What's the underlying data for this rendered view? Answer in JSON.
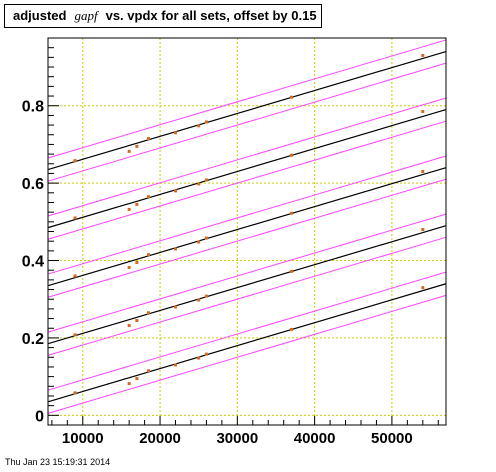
{
  "title": {
    "prefix": "adjusted",
    "math": "gapf",
    "suffix": "vs. vpdx for all sets, offset by 0.15"
  },
  "footer": "Thu Jan 23 15:19:31 2014",
  "colors": {
    "fit_line": "#000000",
    "band_lines": "#ff44ff",
    "points": "#d2691e",
    "grid": "#cccc00",
    "axes": "#000000"
  },
  "chart_data": {
    "type": "scatter",
    "title": "adjusted gapf vs. vpdx for all sets, offset by 0.15",
    "xlabel": "",
    "ylabel": "",
    "xlim": [
      5500,
      57000
    ],
    "ylim": [
      -0.025,
      0.975
    ],
    "x_ticks": [
      10000,
      20000,
      30000,
      40000,
      50000
    ],
    "x_tick_labels": [
      "10000",
      "20000",
      "30000",
      "40000",
      "50000"
    ],
    "y_ticks": [
      0,
      0.2,
      0.4,
      0.6,
      0.8
    ],
    "y_tick_labels": [
      "0",
      "0.2",
      "0.4",
      "0.6",
      "0.8"
    ],
    "grid": true,
    "offset": 0.15,
    "band_halfwidth": 0.03,
    "series": [
      {
        "fit": {
          "x": [
            5500,
            57000
          ],
          "y": [
            0.035,
            0.34
          ]
        },
        "points": [
          [
            9000,
            0.058
          ],
          [
            16000,
            0.082
          ],
          [
            17000,
            0.095
          ],
          [
            18500,
            0.115
          ],
          [
            22000,
            0.13
          ],
          [
            25000,
            0.148
          ],
          [
            26000,
            0.158
          ],
          [
            37000,
            0.222
          ],
          [
            54000,
            0.33
          ]
        ]
      },
      {
        "fit": {
          "x": [
            5500,
            57000
          ],
          "y": [
            0.185,
            0.49
          ]
        },
        "points": [
          [
            9000,
            0.208
          ],
          [
            16000,
            0.232
          ],
          [
            17000,
            0.245
          ],
          [
            18500,
            0.265
          ],
          [
            22000,
            0.28
          ],
          [
            25000,
            0.298
          ],
          [
            26000,
            0.308
          ],
          [
            37000,
            0.372
          ],
          [
            54000,
            0.48
          ]
        ]
      },
      {
        "fit": {
          "x": [
            5500,
            57000
          ],
          "y": [
            0.335,
            0.64
          ]
        },
        "points": [
          [
            9000,
            0.36
          ],
          [
            16000,
            0.382
          ],
          [
            17000,
            0.395
          ],
          [
            18500,
            0.415
          ],
          [
            22000,
            0.43
          ],
          [
            25000,
            0.448
          ],
          [
            26000,
            0.458
          ],
          [
            37000,
            0.522
          ],
          [
            54000,
            0.63
          ]
        ]
      },
      {
        "fit": {
          "x": [
            5500,
            57000
          ],
          "y": [
            0.485,
            0.79
          ]
        },
        "points": [
          [
            9000,
            0.51
          ],
          [
            16000,
            0.532
          ],
          [
            17000,
            0.545
          ],
          [
            18500,
            0.565
          ],
          [
            22000,
            0.58
          ],
          [
            25000,
            0.598
          ],
          [
            26000,
            0.608
          ],
          [
            37000,
            0.672
          ],
          [
            54000,
            0.785
          ]
        ]
      },
      {
        "fit": {
          "x": [
            5500,
            57000
          ],
          "y": [
            0.635,
            0.94
          ]
        },
        "points": [
          [
            9000,
            0.658
          ],
          [
            16000,
            0.682
          ],
          [
            17000,
            0.695
          ],
          [
            18500,
            0.715
          ],
          [
            22000,
            0.73
          ],
          [
            25000,
            0.748
          ],
          [
            26000,
            0.758
          ],
          [
            37000,
            0.822
          ],
          [
            54000,
            0.93
          ]
        ]
      }
    ]
  }
}
